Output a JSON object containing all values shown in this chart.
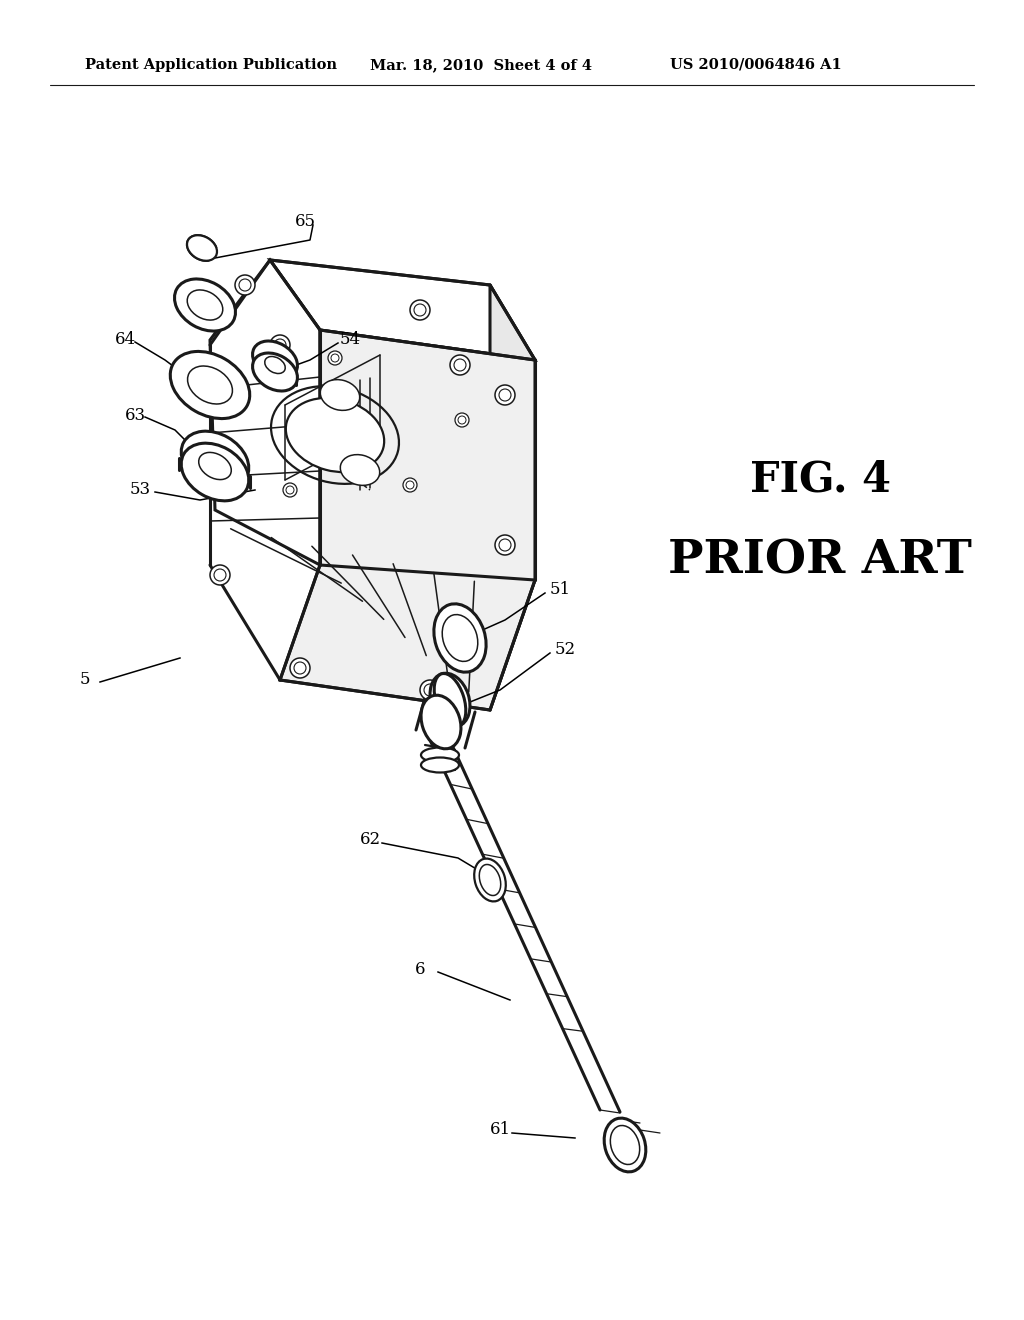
{
  "title": "Patent Application Publication",
  "date": "Mar. 18, 2010",
  "sheet": "Sheet 4 of 4",
  "patent_num": "US 2010/0064846 A1",
  "fig_label": "FIG. 4",
  "prior_art": "PRIOR ART",
  "bg_color": "#ffffff",
  "line_color": "#1a1a1a",
  "header_fontsize": 10.5,
  "label_fontsize": 12
}
